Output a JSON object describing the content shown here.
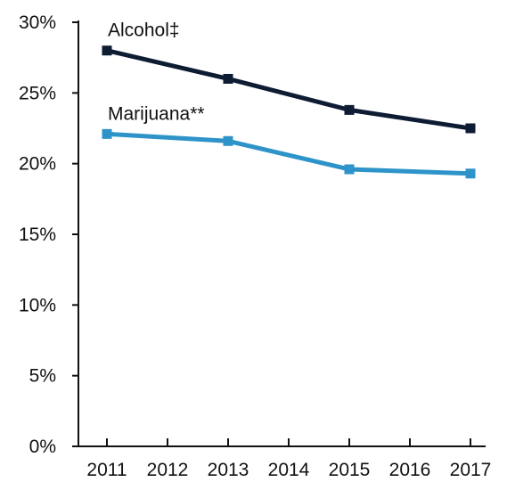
{
  "chart_data": {
    "type": "line",
    "x": [
      2011,
      2012,
      2013,
      2014,
      2015,
      2016,
      2017
    ],
    "x_tick_labels": [
      "2011",
      "2012",
      "2013",
      "2014",
      "2015",
      "2016",
      "2017"
    ],
    "y_tick_labels": [
      "0%",
      "5%",
      "10%",
      "15%",
      "20%",
      "25%",
      "30%"
    ],
    "y_ticks": [
      0,
      5,
      10,
      15,
      20,
      25,
      30
    ],
    "ylim": [
      0,
      30
    ],
    "xlim": [
      2011,
      2017
    ],
    "grid": false,
    "series": [
      {
        "name": "Alcohol‡",
        "color": "#0d1b33",
        "points": [
          {
            "x": 2011,
            "y": 28.0
          },
          {
            "x": 2013,
            "y": 26.0
          },
          {
            "x": 2015,
            "y": 23.8
          },
          {
            "x": 2017,
            "y": 22.5
          }
        ]
      },
      {
        "name": "Marijuana**",
        "color": "#2e93c9",
        "points": [
          {
            "x": 2011,
            "y": 22.1
          },
          {
            "x": 2013,
            "y": 21.6
          },
          {
            "x": 2015,
            "y": 19.6
          },
          {
            "x": 2017,
            "y": 19.3
          }
        ]
      }
    ]
  }
}
